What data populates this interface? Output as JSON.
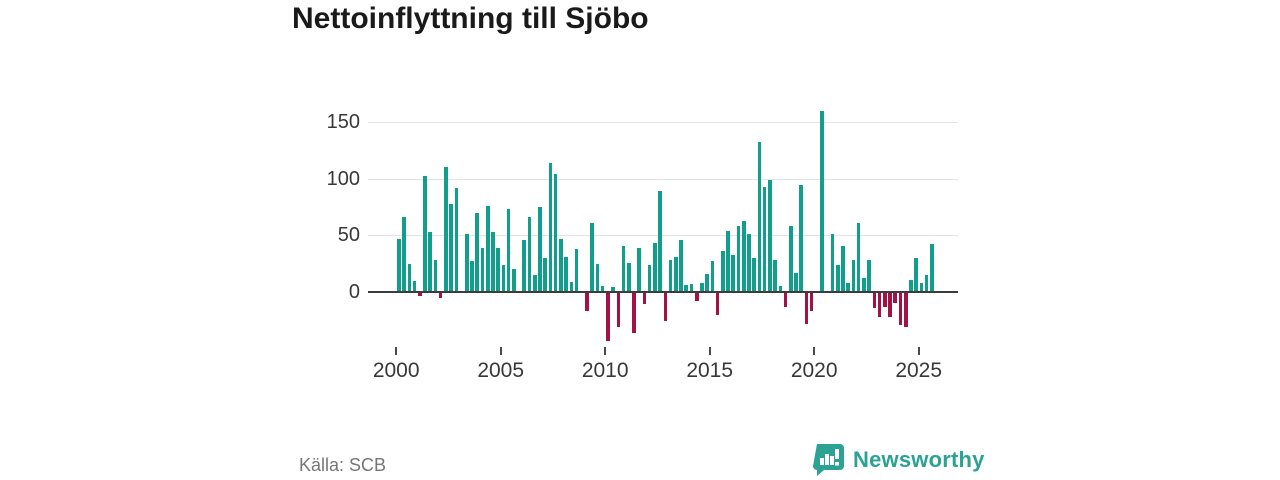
{
  "title": "Nettoinflyttning till Sjöbo",
  "source": "Källa: SCB",
  "brand": {
    "name": "Newsworthy",
    "color": "#2ba294"
  },
  "colors": {
    "positive_bar": "#119e8d",
    "negative_bar": "#a31145",
    "gridline": "#e4e4e4",
    "zero_axis": "#3c3c3c",
    "title_text": "#1a1a1a",
    "tick_text": "#383838",
    "source_text": "#767676"
  },
  "chart_data": {
    "type": "bar",
    "title": "Nettoinflyttning till Sjöbo",
    "xlabel": "",
    "ylabel": "",
    "frequency": "quarterly",
    "start_year": 2000,
    "start_quarter": 1,
    "x_tick_labels": [
      "2000",
      "2005",
      "2010",
      "2015",
      "2020",
      "2025"
    ],
    "y_tick_values": [
      0,
      50,
      100,
      150
    ],
    "ylim": [
      -50,
      178
    ],
    "grid": true,
    "legend": false,
    "values": [
      47,
      66,
      25,
      10,
      -3,
      102,
      53,
      28,
      -4,
      110,
      78,
      92,
      0,
      51,
      27,
      70,
      39,
      76,
      53,
      39,
      24,
      73,
      20,
      0,
      46,
      66,
      15,
      75,
      30,
      114,
      104,
      47,
      31,
      9,
      38,
      0,
      -16,
      61,
      25,
      5,
      -42,
      4,
      -30,
      41,
      26,
      -35,
      39,
      -10,
      24,
      43,
      89,
      -25,
      28,
      31,
      46,
      6,
      7,
      -7,
      8,
      16,
      27,
      -19,
      36,
      54,
      33,
      58,
      63,
      51,
      30,
      132,
      93,
      99,
      28,
      5,
      -12,
      58,
      17,
      94,
      -27,
      -16,
      0,
      160,
      0,
      51,
      24,
      41,
      8,
      28,
      61,
      12,
      28,
      -13,
      -21,
      -12,
      -21,
      -9,
      -28,
      -30,
      11,
      30,
      8,
      15,
      42
    ]
  }
}
